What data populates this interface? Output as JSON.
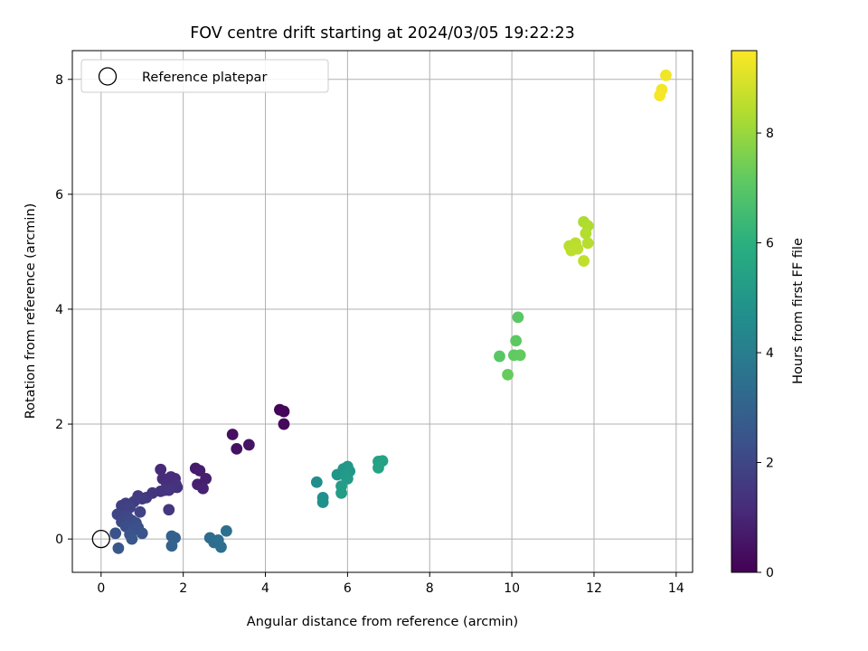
{
  "chart_data": {
    "type": "scatter",
    "title": "FOV centre drift starting at 2024/03/05 19:22:23",
    "xlabel": "Angular distance from reference (arcmin)",
    "ylabel": "Rotation from reference (arcmin)",
    "xlim": [
      -0.7,
      14.4
    ],
    "ylim": [
      -0.58,
      8.5
    ],
    "xticks": [
      "0",
      "2",
      "4",
      "6",
      "8",
      "10",
      "12",
      "14"
    ],
    "yticks": [
      "0",
      "2",
      "4",
      "6",
      "8"
    ],
    "grid": true,
    "legend": {
      "position": "top-left",
      "entries": [
        "Reference platepar"
      ]
    },
    "colorbar": {
      "label": "Hours from first FF file",
      "range": [
        0,
        9.5
      ],
      "ticks": [
        "0",
        "2",
        "4",
        "6",
        "8"
      ],
      "colormap": "viridis"
    },
    "reference_point": {
      "x": 0,
      "y": 0
    },
    "points": [
      {
        "x": 4.35,
        "y": 2.25,
        "c": 0.1
      },
      {
        "x": 4.45,
        "y": 2.22,
        "c": 0.15
      },
      {
        "x": 4.45,
        "y": 2.0,
        "c": 0.2
      },
      {
        "x": 3.2,
        "y": 1.82,
        "c": 0.4
      },
      {
        "x": 3.3,
        "y": 1.57,
        "c": 0.45
      },
      {
        "x": 3.6,
        "y": 1.64,
        "c": 0.5
      },
      {
        "x": 2.3,
        "y": 1.23,
        "c": 0.7
      },
      {
        "x": 2.4,
        "y": 1.19,
        "c": 0.75
      },
      {
        "x": 2.55,
        "y": 1.05,
        "c": 0.8
      },
      {
        "x": 2.35,
        "y": 0.95,
        "c": 0.85
      },
      {
        "x": 2.48,
        "y": 0.88,
        "c": 0.9
      },
      {
        "x": 1.45,
        "y": 1.21,
        "c": 1.1
      },
      {
        "x": 1.5,
        "y": 1.05,
        "c": 1.15
      },
      {
        "x": 1.7,
        "y": 1.08,
        "c": 1.2
      },
      {
        "x": 1.8,
        "y": 1.05,
        "c": 1.2
      },
      {
        "x": 1.6,
        "y": 0.96,
        "c": 1.25
      },
      {
        "x": 1.82,
        "y": 0.95,
        "c": 1.3
      },
      {
        "x": 1.75,
        "y": 0.9,
        "c": 1.3
      },
      {
        "x": 1.85,
        "y": 0.9,
        "c": 1.35
      },
      {
        "x": 1.45,
        "y": 0.83,
        "c": 1.35
      },
      {
        "x": 1.55,
        "y": 0.85,
        "c": 1.4
      },
      {
        "x": 1.65,
        "y": 0.85,
        "c": 1.4
      },
      {
        "x": 1.25,
        "y": 0.8,
        "c": 1.45
      },
      {
        "x": 1.65,
        "y": 0.51,
        "c": 1.5
      },
      {
        "x": 1.1,
        "y": 0.72,
        "c": 1.55
      },
      {
        "x": 0.9,
        "y": 0.75,
        "c": 1.6
      },
      {
        "x": 1.0,
        "y": 0.7,
        "c": 1.65
      },
      {
        "x": 0.8,
        "y": 0.65,
        "c": 1.7
      },
      {
        "x": 0.6,
        "y": 0.62,
        "c": 1.75
      },
      {
        "x": 0.5,
        "y": 0.58,
        "c": 1.8
      },
      {
        "x": 0.7,
        "y": 0.55,
        "c": 1.85
      },
      {
        "x": 0.95,
        "y": 0.47,
        "c": 1.9
      },
      {
        "x": 0.4,
        "y": 0.43,
        "c": 1.95
      },
      {
        "x": 0.55,
        "y": 0.4,
        "c": 2.0
      },
      {
        "x": 0.65,
        "y": 0.38,
        "c": 2.05
      },
      {
        "x": 0.5,
        "y": 0.3,
        "c": 2.1
      },
      {
        "x": 0.75,
        "y": 0.32,
        "c": 2.15
      },
      {
        "x": 0.85,
        "y": 0.28,
        "c": 2.2
      },
      {
        "x": 0.6,
        "y": 0.22,
        "c": 2.25
      },
      {
        "x": 0.9,
        "y": 0.2,
        "c": 2.3
      },
      {
        "x": 0.8,
        "y": 0.16,
        "c": 2.35
      },
      {
        "x": 0.35,
        "y": 0.1,
        "c": 2.4
      },
      {
        "x": 1.0,
        "y": 0.1,
        "c": 2.45
      },
      {
        "x": 0.7,
        "y": 0.08,
        "c": 2.5
      },
      {
        "x": 0.75,
        "y": 0.0,
        "c": 2.55
      },
      {
        "x": 0.42,
        "y": -0.16,
        "c": 2.6
      },
      {
        "x": 1.72,
        "y": 0.05,
        "c": 2.9
      },
      {
        "x": 1.8,
        "y": 0.02,
        "c": 2.95
      },
      {
        "x": 1.72,
        "y": -0.12,
        "c": 3.0
      },
      {
        "x": 2.65,
        "y": 0.02,
        "c": 3.3
      },
      {
        "x": 2.75,
        "y": -0.06,
        "c": 3.35
      },
      {
        "x": 2.85,
        "y": -0.02,
        "c": 3.4
      },
      {
        "x": 2.92,
        "y": -0.14,
        "c": 3.45
      },
      {
        "x": 3.05,
        "y": 0.14,
        "c": 3.5
      },
      {
        "x": 5.25,
        "y": 0.99,
        "c": 4.6
      },
      {
        "x": 5.4,
        "y": 0.72,
        "c": 4.7
      },
      {
        "x": 5.4,
        "y": 0.64,
        "c": 4.75
      },
      {
        "x": 5.75,
        "y": 1.12,
        "c": 4.9
      },
      {
        "x": 5.9,
        "y": 1.22,
        "c": 4.95
      },
      {
        "x": 6.0,
        "y": 1.26,
        "c": 5.0
      },
      {
        "x": 6.05,
        "y": 1.18,
        "c": 5.05
      },
      {
        "x": 5.95,
        "y": 1.1,
        "c": 5.1
      },
      {
        "x": 6.0,
        "y": 1.05,
        "c": 5.15
      },
      {
        "x": 5.85,
        "y": 0.92,
        "c": 5.2
      },
      {
        "x": 5.85,
        "y": 0.8,
        "c": 5.25
      },
      {
        "x": 6.75,
        "y": 1.35,
        "c": 5.4
      },
      {
        "x": 6.85,
        "y": 1.36,
        "c": 5.45
      },
      {
        "x": 6.75,
        "y": 1.24,
        "c": 5.5
      },
      {
        "x": 9.7,
        "y": 3.18,
        "c": 7.0
      },
      {
        "x": 10.15,
        "y": 3.86,
        "c": 7.05
      },
      {
        "x": 10.1,
        "y": 3.45,
        "c": 7.1
      },
      {
        "x": 10.05,
        "y": 3.2,
        "c": 7.15
      },
      {
        "x": 10.2,
        "y": 3.2,
        "c": 7.2
      },
      {
        "x": 9.9,
        "y": 2.86,
        "c": 7.25
      },
      {
        "x": 11.75,
        "y": 5.52,
        "c": 8.3
      },
      {
        "x": 11.85,
        "y": 5.45,
        "c": 8.35
      },
      {
        "x": 11.8,
        "y": 5.32,
        "c": 8.4
      },
      {
        "x": 11.85,
        "y": 5.15,
        "c": 8.45
      },
      {
        "x": 11.4,
        "y": 5.1,
        "c": 8.5
      },
      {
        "x": 11.55,
        "y": 5.15,
        "c": 8.5
      },
      {
        "x": 11.6,
        "y": 5.05,
        "c": 8.55
      },
      {
        "x": 11.45,
        "y": 5.02,
        "c": 8.55
      },
      {
        "x": 11.75,
        "y": 4.84,
        "c": 8.6
      },
      {
        "x": 13.75,
        "y": 8.07,
        "c": 9.3
      },
      {
        "x": 13.65,
        "y": 7.82,
        "c": 9.35
      },
      {
        "x": 13.6,
        "y": 7.72,
        "c": 9.4
      }
    ]
  }
}
